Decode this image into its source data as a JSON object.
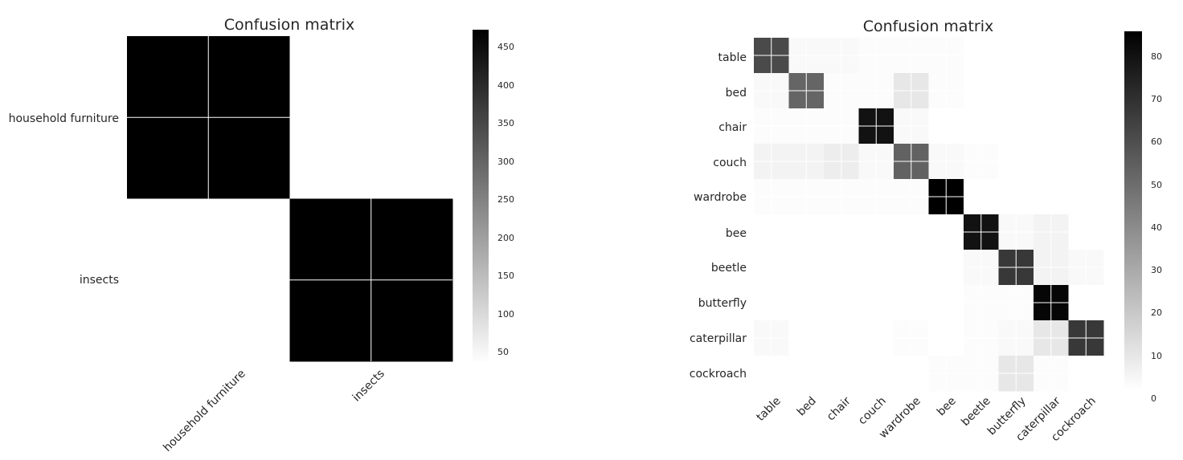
{
  "chart_data": [
    {
      "type": "heatmap",
      "title": "Confusion matrix",
      "xlabel": "",
      "ylabel": "",
      "categories": [
        "household furniture",
        "insects"
      ],
      "matrix": [
        [
          470,
          30
        ],
        [
          30,
          470
        ]
      ],
      "colorbar": {
        "ticks": [
          50,
          100,
          150,
          200,
          250,
          300,
          350,
          400,
          450
        ],
        "range": [
          30,
          470
        ]
      },
      "colormap": "gray_r",
      "grid": true
    },
    {
      "type": "heatmap",
      "title": "Confusion matrix",
      "xlabel": "",
      "ylabel": "",
      "categories": [
        "table",
        "bed",
        "chair",
        "couch",
        "wardrobe",
        "bee",
        "beetle",
        "butterfly",
        "caterpillar",
        "cockroach"
      ],
      "matrix": [
        [
          61,
          2,
          2,
          1,
          1,
          1,
          0,
          0,
          0,
          0
        ],
        [
          2,
          52,
          1,
          1,
          8,
          1,
          0,
          0,
          0,
          0
        ],
        [
          1,
          1,
          1,
          80,
          2,
          0,
          0,
          0,
          0,
          0
        ],
        [
          4,
          4,
          6,
          2,
          53,
          2,
          1,
          0,
          0,
          0
        ],
        [
          1,
          1,
          1,
          1,
          1,
          86,
          0,
          0,
          0,
          0
        ],
        [
          0,
          0,
          0,
          0,
          0,
          0,
          80,
          2,
          4,
          0
        ],
        [
          0,
          0,
          0,
          0,
          0,
          0,
          2,
          67,
          4,
          2
        ],
        [
          0,
          0,
          0,
          0,
          0,
          0,
          1,
          1,
          84,
          0
        ],
        [
          2,
          0,
          0,
          0,
          1,
          0,
          1,
          2,
          8,
          67
        ],
        [
          0,
          0,
          0,
          0,
          0,
          1,
          1,
          8,
          1,
          0
        ]
      ],
      "colorbar": {
        "ticks": [
          0,
          10,
          20,
          30,
          40,
          50,
          60,
          70,
          80
        ],
        "range": [
          0,
          86
        ]
      },
      "colormap": "gray_r",
      "grid": true
    }
  ]
}
